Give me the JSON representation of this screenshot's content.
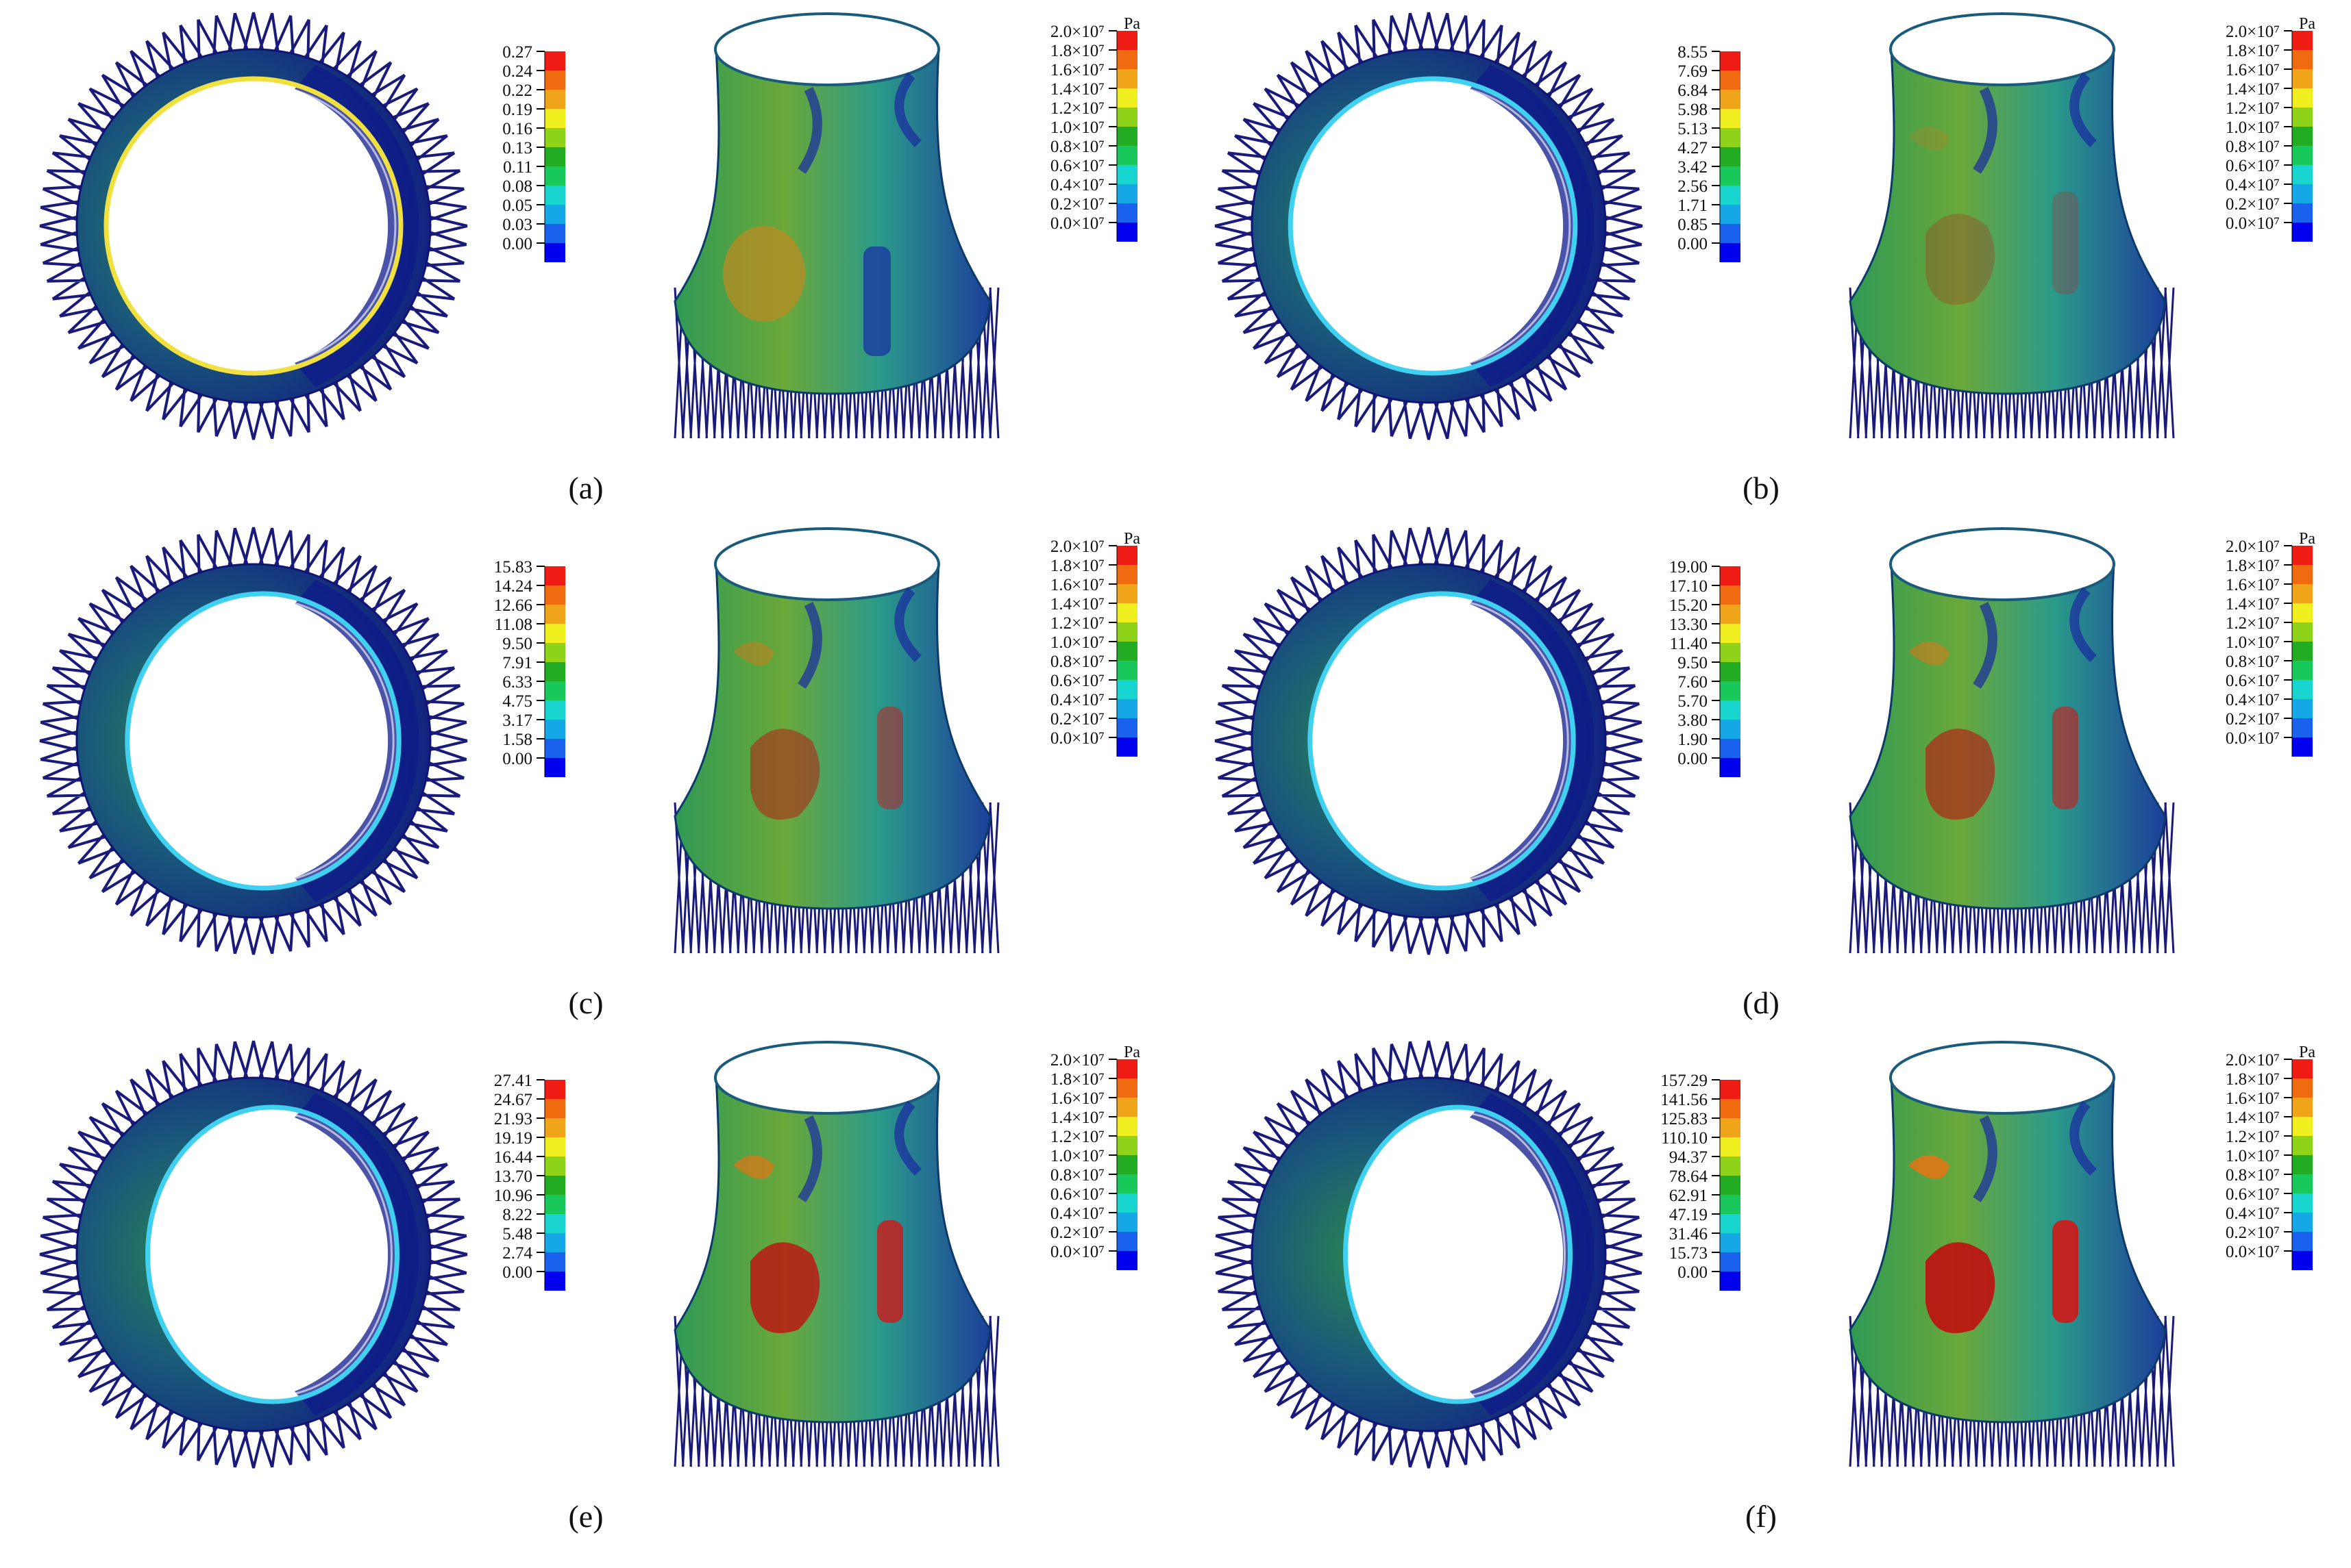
{
  "colorbar_colors": [
    "#0000ee",
    "#1a62ee",
    "#16a8e6",
    "#18d6cf",
    "#19c85a",
    "#22ac24",
    "#8fd21a",
    "#efef20",
    "#f0a41a",
    "#f06a10",
    "#ee1c14"
  ],
  "stress_ticks": [
    "2.0×10⁷",
    "1.8×10⁷",
    "1.6×10⁷",
    "1.4×10⁷",
    "1.2×10⁷",
    "1.0×10⁷",
    "0.8×10⁷",
    "0.6×10⁷",
    "0.4×10⁷",
    "0.2×10⁷",
    "0.0×10⁷"
  ],
  "stress_unit": "Pa",
  "panels": [
    {
      "label": "a",
      "disp_ticks": [
        "0.27",
        "0.24",
        "0.22",
        "0.19",
        "0.16",
        "0.13",
        "0.11",
        "0.08",
        "0.05",
        "0.03",
        "0.00"
      ],
      "deform": 0.0,
      "damage": 0.0
    },
    {
      "label": "b",
      "disp_ticks": [
        "8.55",
        "7.69",
        "6.84",
        "5.98",
        "5.13",
        "4.27",
        "3.42",
        "2.56",
        "1.71",
        "0.85",
        "0.00"
      ],
      "deform": 0.12,
      "damage": 0.25
    },
    {
      "label": "c",
      "disp_ticks": [
        "15.83",
        "14.24",
        "12.66",
        "11.08",
        "9.50",
        "7.91",
        "6.33",
        "4.75",
        "3.17",
        "1.58",
        "0.00"
      ],
      "deform": 0.28,
      "damage": 0.5
    },
    {
      "label": "d",
      "disp_ticks": [
        "19.00",
        "17.10",
        "15.20",
        "13.30",
        "11.40",
        "9.50",
        "7.60",
        "5.70",
        "3.80",
        "1.90",
        "0.00"
      ],
      "deform": 0.38,
      "damage": 0.6
    },
    {
      "label": "e",
      "disp_ticks": [
        "27.41",
        "24.67",
        "21.93",
        "19.19",
        "16.44",
        "13.70",
        "10.96",
        "8.22",
        "5.48",
        "2.74",
        "0.00"
      ],
      "deform": 0.55,
      "damage": 0.8
    },
    {
      "label": "f",
      "disp_ticks": [
        "157.29",
        "141.56",
        "125.83",
        "110.10",
        "94.37",
        "78.64",
        "62.91",
        "47.19",
        "31.46",
        "15.73",
        "0.00"
      ],
      "deform": 0.85,
      "damage": 1.0
    }
  ]
}
